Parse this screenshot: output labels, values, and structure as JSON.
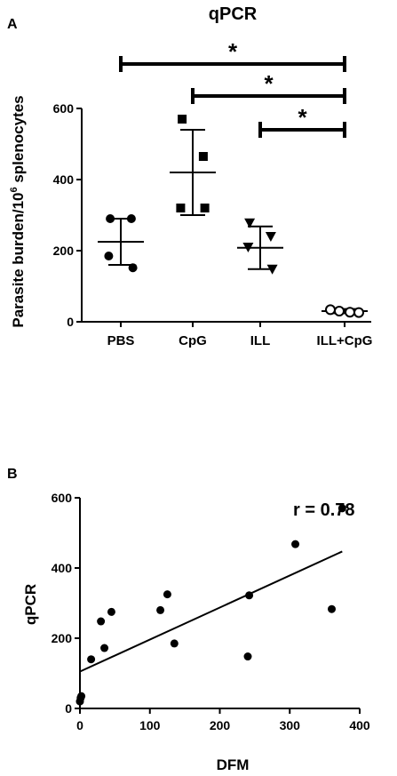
{
  "chart_data": [
    {
      "panel": "A",
      "type": "scatter",
      "title": "qPCR",
      "ylabel_main": "Parasite burden/10",
      "ylabel_sup": "6",
      "ylabel_tail": " splenocytes",
      "ylim": [
        0,
        600
      ],
      "yticks": [
        0,
        200,
        400,
        600
      ],
      "categories": [
        "PBS",
        "CpG",
        "ILL",
        "ILL+CpG"
      ],
      "groups": [
        {
          "name": "PBS",
          "marker": "circle-filled",
          "points": [
            290,
            290,
            185,
            152
          ],
          "mean": 225,
          "sd_low": 160,
          "sd_high": 290
        },
        {
          "name": "CpG",
          "marker": "square-filled",
          "points": [
            570,
            465,
            320,
            320
          ],
          "mean": 420,
          "sd_low": 300,
          "sd_high": 540
        },
        {
          "name": "ILL",
          "marker": "triangle-down-filled",
          "points": [
            278,
            240,
            210,
            148
          ],
          "mean": 208,
          "sd_low": 148,
          "sd_high": 268
        },
        {
          "name": "ILL+CpG",
          "marker": "circle-open",
          "points": [
            34,
            30,
            27,
            26
          ],
          "mean": 30,
          "sd_low": 24,
          "sd_high": 36
        }
      ],
      "significance": [
        {
          "from": "PBS",
          "to": "ILL+CpG",
          "label": "*"
        },
        {
          "from": "CpG",
          "to": "ILL+CpG",
          "label": "*"
        },
        {
          "from": "ILL",
          "to": "ILL+CpG",
          "label": "*"
        }
      ]
    },
    {
      "panel": "B",
      "type": "scatter",
      "xlabel": "DFM",
      "ylabel": "qPCR",
      "xlim": [
        0,
        400
      ],
      "ylim": [
        0,
        600
      ],
      "xticks": [
        0,
        100,
        200,
        300,
        400
      ],
      "yticks": [
        0,
        200,
        400,
        600
      ],
      "annotation": "r = 0.78",
      "points": [
        [
          0,
          20
        ],
        [
          1,
          30
        ],
        [
          2,
          35
        ],
        [
          16,
          140
        ],
        [
          30,
          248
        ],
        [
          35,
          172
        ],
        [
          45,
          275
        ],
        [
          115,
          280
        ],
        [
          125,
          325
        ],
        [
          135,
          185
        ],
        [
          240,
          148
        ],
        [
          242,
          322
        ],
        [
          308,
          468
        ],
        [
          360,
          283
        ],
        [
          375,
          570
        ]
      ],
      "fit_line": [
        [
          0,
          105
        ],
        [
          375,
          447
        ]
      ]
    }
  ]
}
